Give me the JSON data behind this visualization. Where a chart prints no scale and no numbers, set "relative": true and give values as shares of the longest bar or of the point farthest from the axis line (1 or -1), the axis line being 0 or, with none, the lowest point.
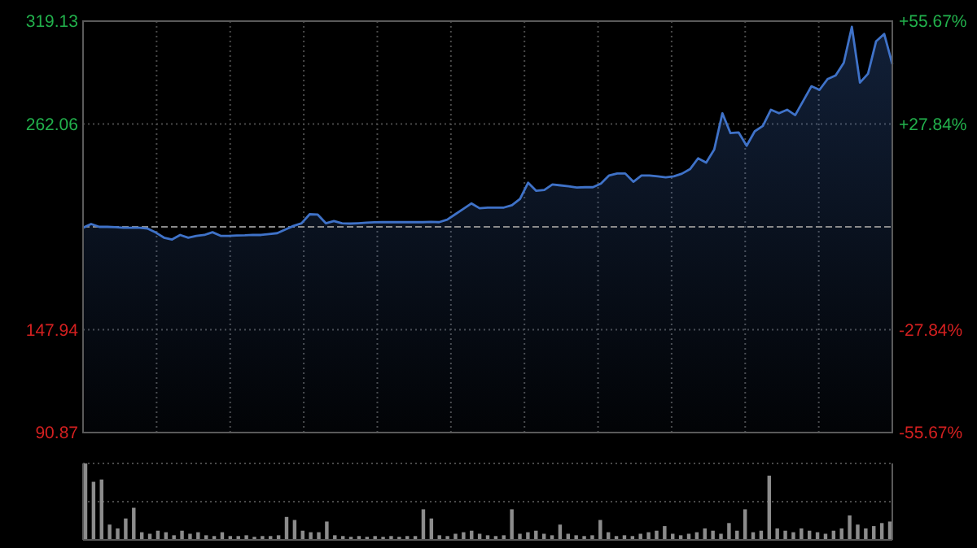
{
  "chart_data": [
    {
      "type": "area",
      "color": "#3f72c8",
      "ylim": [
        90.87,
        319.13
      ],
      "yticks": [
        90.87,
        147.94,
        262.06,
        319.13
      ],
      "y2lim": [
        -55.67,
        55.67
      ],
      "y2ticks": [
        {
          "value": -55.67,
          "label": "-55.67%"
        },
        {
          "value": -27.84,
          "label": "-27.84%"
        },
        {
          "value": 27.84,
          "label": "+27.84%"
        },
        {
          "value": 55.67,
          "label": "+55.67%"
        }
      ],
      "grid": true,
      "ref_lines": [
        {
          "axis": "y",
          "value": 205.0,
          "color": "#8a8a8a",
          "line_style": "dashed"
        }
      ],
      "categories": [
        null,
        null,
        null,
        null,
        null,
        null,
        null,
        null,
        null,
        null,
        null,
        null,
        null,
        null,
        null,
        null,
        null,
        null,
        null,
        null,
        null,
        null,
        null,
        null,
        null,
        null,
        null,
        null,
        null,
        null,
        null,
        null,
        null,
        null,
        null,
        null,
        null,
        null,
        null,
        null,
        null,
        null,
        null,
        null,
        null,
        null,
        null,
        null,
        null,
        null,
        null,
        null,
        null,
        null,
        null,
        null,
        null,
        null,
        null,
        null,
        null,
        null,
        null,
        null,
        null,
        null,
        null,
        null,
        null,
        null,
        null,
        null,
        null,
        null,
        null,
        null,
        null,
        null,
        null,
        null,
        null,
        null,
        null,
        null,
        null,
        null,
        null,
        null,
        null,
        null,
        null,
        null,
        null,
        null,
        null,
        null,
        null,
        null,
        null,
        null,
        null
      ],
      "values": [
        204.5,
        206.6,
        205,
        205,
        204.8,
        204.5,
        204.5,
        204.5,
        204,
        201.8,
        199,
        198,
        200.5,
        199,
        200,
        200.5,
        202,
        200,
        200,
        200.2,
        200.3,
        200.5,
        200.5,
        201,
        201.5,
        203.5,
        205.5,
        207,
        212,
        211.8,
        207,
        208.2,
        207,
        206.8,
        207,
        207.3,
        207.5,
        207.6,
        207.6,
        207.6,
        207.6,
        207.6,
        207.6,
        207.8,
        207.6,
        209,
        212,
        215,
        218,
        215.3,
        215.7,
        215.7,
        215.7,
        217,
        220.5,
        229.5,
        225,
        225.5,
        228.5,
        228,
        227.5,
        226.8,
        227,
        227,
        229,
        233.5,
        234.6,
        234.6,
        230,
        233.5,
        233.5,
        233,
        232.5,
        233,
        234.5,
        237,
        243,
        240.6,
        248,
        268,
        257,
        257.4,
        250,
        258,
        261,
        270,
        268,
        270,
        267,
        275,
        283,
        281,
        287,
        289,
        296,
        316,
        285,
        290,
        308,
        312,
        295.3
      ]
    },
    {
      "type": "bar",
      "relative": true,
      "color": "#8c8c8c",
      "ref_lines": [
        {
          "axis": "y",
          "value": 0.5,
          "color": "#4a4a4a",
          "line_style": "dotted"
        },
        {
          "axis": "y",
          "value": 1,
          "color": "#4a4a4a",
          "line_style": "dotted"
        }
      ],
      "categories": [
        null,
        null,
        null,
        null,
        null,
        null,
        null,
        null,
        null,
        null,
        null,
        null,
        null,
        null,
        null,
        null,
        null,
        null,
        null,
        null,
        null,
        null,
        null,
        null,
        null,
        null,
        null,
        null,
        null,
        null,
        null,
        null,
        null,
        null,
        null,
        null,
        null,
        null,
        null,
        null,
        null,
        null,
        null,
        null,
        null,
        null,
        null,
        null,
        null,
        null,
        null,
        null,
        null,
        null,
        null,
        null,
        null,
        null,
        null,
        null,
        null,
        null,
        null,
        null,
        null,
        null,
        null,
        null,
        null,
        null,
        null,
        null,
        null,
        null,
        null,
        null,
        null,
        null,
        null,
        null,
        null,
        null,
        null,
        null,
        null,
        null,
        null,
        null,
        null,
        null,
        null,
        null,
        null,
        null,
        null,
        null,
        null,
        null,
        null,
        null,
        null
      ],
      "values": [
        1.0,
        0.76,
        0.79,
        0.2,
        0.15,
        0.28,
        0.42,
        0.1,
        0.08,
        0.12,
        0.1,
        0.06,
        0.12,
        0.08,
        0.1,
        0.06,
        0.05,
        0.1,
        0.05,
        0.05,
        0.06,
        0.04,
        0.05,
        0.05,
        0.06,
        0.3,
        0.26,
        0.12,
        0.1,
        0.1,
        0.24,
        0.06,
        0.05,
        0.04,
        0.05,
        0.04,
        0.05,
        0.04,
        0.05,
        0.04,
        0.05,
        0.05,
        0.4,
        0.28,
        0.06,
        0.05,
        0.08,
        0.1,
        0.12,
        0.08,
        0.06,
        0.05,
        0.06,
        0.4,
        0.08,
        0.1,
        0.12,
        0.08,
        0.06,
        0.2,
        0.08,
        0.06,
        0.05,
        0.06,
        0.26,
        0.1,
        0.05,
        0.06,
        0.05,
        0.08,
        0.1,
        0.12,
        0.18,
        0.08,
        0.06,
        0.08,
        0.1,
        0.15,
        0.12,
        0.08,
        0.22,
        0.12,
        0.4,
        0.1,
        0.12,
        0.84,
        0.15,
        0.12,
        0.1,
        0.15,
        0.12,
        0.1,
        0.08,
        0.12,
        0.15,
        0.32,
        0.2,
        0.15,
        0.18,
        0.22,
        0.24
      ]
    }
  ]
}
